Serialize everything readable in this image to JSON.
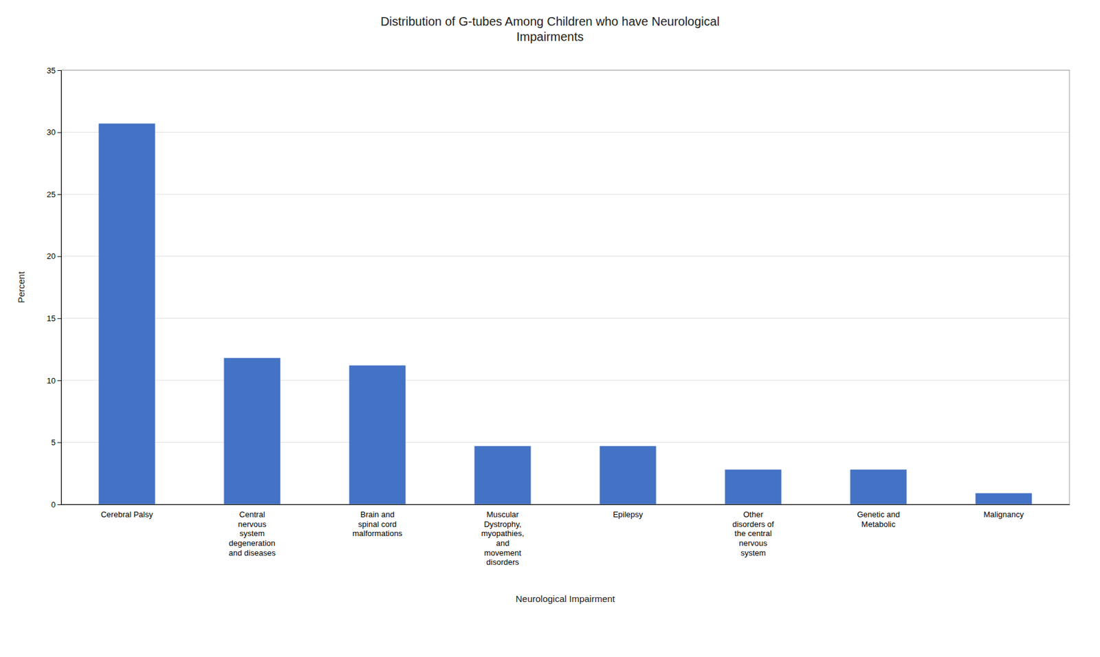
{
  "chart_data": {
    "type": "bar",
    "title": "Distribution of G-tubes Among Children who have Neurological\nImpairments",
    "xlabel": "Neurological Impairment",
    "ylabel": "Percent",
    "categories": [
      "Cerebral Palsy",
      "Central\nnervous\nsystem\ndegeneration\nand diseases",
      "Brain and\nspinal cord\nmalformations",
      "Muscular\nDystrophy,\nmyopathies,\nand\nmovement\ndisorders",
      "Epilepsy",
      "Other\ndisorders of\nthe central\nnervous\nsystem",
      "Genetic and\nMetabolic",
      "Malignancy"
    ],
    "values": [
      30.7,
      11.8,
      11.2,
      4.7,
      4.7,
      2.8,
      2.8,
      0.9
    ],
    "color": "#4472C4",
    "ylim": [
      0,
      35
    ],
    "yticks": [
      0,
      5,
      10,
      15,
      20,
      25,
      30,
      35
    ],
    "grid": true
  }
}
